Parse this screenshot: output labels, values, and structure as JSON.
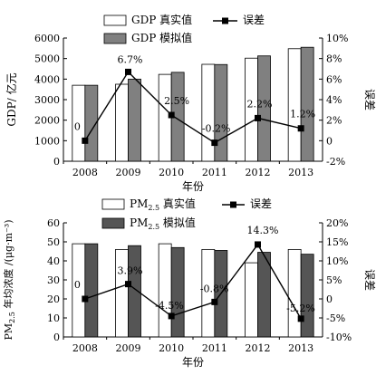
{
  "chart_data": [
    {
      "type": "bar",
      "categories": [
        "2008",
        "2009",
        "2010",
        "2011",
        "2012",
        "2013"
      ],
      "xlabel": "年份",
      "ylabel": "GDP/ 亿元",
      "y2label": "误差",
      "ylim": [
        0,
        6000
      ],
      "yticks": [
        "0",
        "1000",
        "2000",
        "3000",
        "4000",
        "5000",
        "6000"
      ],
      "y2lim": [
        -2,
        10
      ],
      "y2ticks": [
        "-2%",
        "0",
        "2%",
        "4%",
        "6%",
        "8%",
        "10%"
      ],
      "legend_position": "top",
      "series": [
        {
          "name": "GDP 真实值",
          "kind": "bar",
          "color": "#ffffff",
          "values": [
            3700,
            3750,
            4230,
            4720,
            5020,
            5480
          ]
        },
        {
          "name": "GDP 模拟值",
          "kind": "bar",
          "color": "#808080",
          "values": [
            3700,
            4000,
            4330,
            4710,
            5130,
            5550
          ]
        },
        {
          "name": "误差",
          "kind": "line",
          "axis": "right",
          "color": "#000000",
          "values": [
            0,
            6.7,
            2.5,
            -0.2,
            2.2,
            1.2
          ],
          "labels": [
            "0",
            "6.7%",
            "2.5%",
            "-0.2%",
            "2.2%",
            "1.2%"
          ]
        }
      ]
    },
    {
      "type": "bar",
      "categories": [
        "2008",
        "2009",
        "2010",
        "2011",
        "2012",
        "2013"
      ],
      "xlabel": "年份",
      "ylabel_prefix": "PM",
      "ylabel_sub": "2.5",
      "ylabel_suffix": " 年均浓度 /(μg·m⁻³)",
      "y2label": "误差",
      "ylim": [
        0,
        60
      ],
      "yticks": [
        "0",
        "10",
        "20",
        "30",
        "40",
        "50",
        "60"
      ],
      "y2lim": [
        -10,
        20
      ],
      "y2ticks": [
        "-10%",
        "-5%",
        "0",
        "5%",
        "10%",
        "15%",
        "20%"
      ],
      "legend_position": "top",
      "series": [
        {
          "name_prefix": "PM",
          "name_sub": "2.5",
          "name_suffix": " 真实值",
          "kind": "bar",
          "color": "#ffffff",
          "values": [
            49,
            46,
            49,
            46,
            39,
            46
          ]
        },
        {
          "name_prefix": "PM",
          "name_sub": "2.5",
          "name_suffix": " 模拟值",
          "kind": "bar",
          "color": "#555555",
          "values": [
            49,
            48,
            47,
            45.5,
            44.5,
            43.5
          ]
        },
        {
          "name": "误差",
          "kind": "line",
          "axis": "right",
          "color": "#000000",
          "values": [
            0,
            3.9,
            -4.5,
            -0.8,
            14.3,
            -5.2
          ],
          "labels": [
            "0",
            "3.9%",
            "-4.5%",
            "-0.8%",
            "14.3%",
            "-5.2%"
          ]
        }
      ]
    }
  ]
}
